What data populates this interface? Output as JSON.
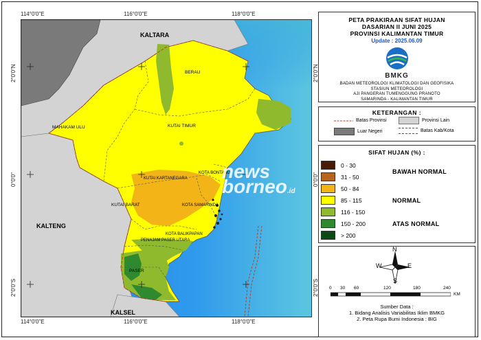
{
  "title": {
    "line1": "PETA PRAKIRAAN SIFAT HUJAN",
    "line2": "DASARIAN II JUNI 2025",
    "line3": "PROVINSI KALIMANTAN TIMUR",
    "update": "Update : 2025.06.09",
    "logo_text": "BMKG",
    "inst1": "BADAN METEOROLOGI KLIMATOLOGI DAN GEOFISIKA",
    "inst2": "STASIUN METEOROLOGI",
    "inst3": "AJI PANGERAN TUMENGGUNG PRANOTO",
    "inst4": "SAMARINDA - KALIMANTAN TIMUR"
  },
  "keterangan": {
    "heading": "KETERANGAN :",
    "batas_provinsi": "Batas Provinsi",
    "provinsi_lain": "Provinsi Lain",
    "luar_negeri": "Luar Negeri",
    "batas_kab": "Batas Kab/Kota"
  },
  "sifat_hujan": {
    "heading": "SIFAT HUJAN (%) :",
    "classes": [
      {
        "label": "0 - 30",
        "color": "#4a1a08"
      },
      {
        "label": "31 - 50",
        "color": "#b5651d"
      },
      {
        "label": "50 - 84",
        "color": "#f2b417"
      },
      {
        "label": "85 - 115",
        "color": "#ffff00"
      },
      {
        "label": "116 - 150",
        "color": "#8fba2e"
      },
      {
        "label": "150 - 200",
        "color": "#2f8a2f"
      },
      {
        "label": "> 200",
        "color": "#0c4a15"
      }
    ],
    "groups": {
      "bawah": "BAWAH NORMAL",
      "normal": "NORMAL",
      "atas": "ATAS NORMAL"
    }
  },
  "compass": {
    "n": "N",
    "s": "S",
    "e": "E",
    "w": "W"
  },
  "scale": {
    "labels": [
      "0",
      "30",
      "60",
      "120",
      "180",
      "240"
    ],
    "unit": "KM"
  },
  "source": {
    "heading": "Sumber Data :",
    "line1": "1. Bidang Analisis Variabilitas Iklim BMKG",
    "line2": "2. Peta Rupa Bumi Indonesia : BIG"
  },
  "ticks": {
    "top": [
      "114°0'0\"E",
      "116°0'0\"E",
      "118°0'0\"E"
    ],
    "bottom": [
      "114°0'0\"E",
      "116°0'0\"E",
      "118°0'0\"E"
    ],
    "left": [
      "2°0'0\"N",
      "0°0'0\"",
      "2°0'0\"S"
    ],
    "right": [
      "2°0'0\"N",
      "0°0'0\"",
      "2°0'0\"S"
    ]
  },
  "map_labels": {
    "kaltara": "KALTARA",
    "kalteng": "KALTENG",
    "kalsel": "KALSEL",
    "berau": "BERAU",
    "mahakam_ulu": "MAHAKAM ULU",
    "kutai_timur": "KUTAI TIMUR",
    "kutai_kartanegara": "KUTAI KARTANEGARA",
    "kota_bontang": "KOTA BONTANG",
    "kutai_barat": "KUTAI BARAT",
    "kota_samarinda": "KOTA SAMARINDA",
    "kota_balikpapan": "KOTA BALIKPAPAN",
    "penajam": "PENAJAM PASER UTARA",
    "paser": "PASER"
  },
  "watermark": {
    "line1": "news",
    "line2": "borneo",
    "suffix": ".id"
  }
}
